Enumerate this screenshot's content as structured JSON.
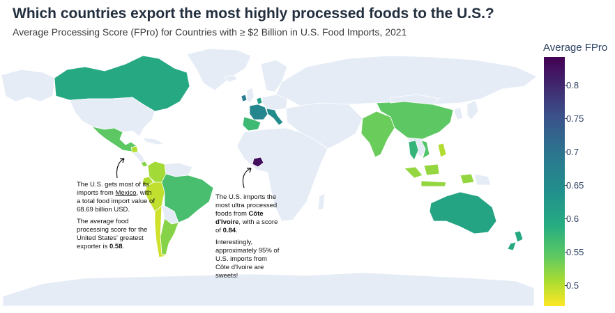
{
  "title": "Which countries export the most highly processed foods to the U.S.?",
  "subtitle": "Average Processing Score (FPro) for Countries with ≥ $2 Billion in U.S. Food Imports, 2021",
  "legend": {
    "title": "Average FPro",
    "ticks": [
      "0.8",
      "0.75",
      "0.7",
      "0.65",
      "0.6",
      "0.55",
      "0.5"
    ],
    "range": [
      0.47,
      0.85
    ],
    "colors": [
      "#440154",
      "#3b528b",
      "#2a788e",
      "#21918c",
      "#27ad81",
      "#5ec962",
      "#aadc32",
      "#fde725"
    ]
  },
  "colors": {
    "land": "#e5ecf6",
    "ocean": "#ffffff",
    "border": "#ffffff",
    "coast": "#555555"
  },
  "annotations": {
    "mexico": {
      "line1_a": "The U.S. gets most of its imports from ",
      "line1_link": "Mexico",
      "line1_b": ", with a total food import value of 68.69 billion USD.",
      "line2_a": "The average food processing score for the United States' greatest exporter is ",
      "line2_bold": "0.58",
      "line2_b": "."
    },
    "ivory_coast": {
      "line1_a": "The U.S. imports the most ultra processed foods from ",
      "line1_bold": "Côte d'Ivoire",
      "line1_b": ", with a score of ",
      "line1_score": "0.84",
      "line1_c": ".",
      "line2": "Interestingly, approximately 95% of U.S. imports from Côte d'Ivoire are sweets!"
    }
  },
  "map_data": {
    "countries": [
      {
        "name": "Canada",
        "fpro": 0.64
      },
      {
        "name": "Mexico",
        "fpro": 0.58
      },
      {
        "name": "Guatemala",
        "fpro": 0.52
      },
      {
        "name": "Costa Rica",
        "fpro": 0.55
      },
      {
        "name": "Colombia",
        "fpro": 0.53
      },
      {
        "name": "Ecuador",
        "fpro": 0.52
      },
      {
        "name": "Peru",
        "fpro": 0.51
      },
      {
        "name": "Chile",
        "fpro": 0.5
      },
      {
        "name": "Brazil",
        "fpro": 0.6
      },
      {
        "name": "Argentina",
        "fpro": 0.55
      },
      {
        "name": "France",
        "fpro": 0.71
      },
      {
        "name": "Ireland",
        "fpro": 0.73
      },
      {
        "name": "Italy",
        "fpro": 0.7
      },
      {
        "name": "Netherlands",
        "fpro": 0.66
      },
      {
        "name": "Spain",
        "fpro": 0.61
      },
      {
        "name": "Côte d'Ivoire",
        "fpro": 0.84
      },
      {
        "name": "India",
        "fpro": 0.57
      },
      {
        "name": "China",
        "fpro": 0.58
      },
      {
        "name": "Thailand",
        "fpro": 0.62
      },
      {
        "name": "Vietnam",
        "fpro": 0.59
      },
      {
        "name": "Indonesia",
        "fpro": 0.54
      },
      {
        "name": "Philippines",
        "fpro": 0.52
      },
      {
        "name": "Australia",
        "fpro": 0.65
      },
      {
        "name": "New Zealand",
        "fpro": 0.64
      }
    ]
  }
}
